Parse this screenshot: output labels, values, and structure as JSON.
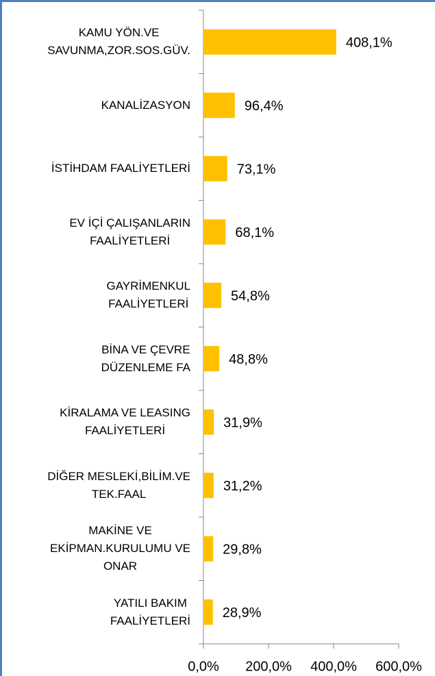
{
  "chart_data": {
    "type": "bar",
    "orientation": "horizontal",
    "categories": [
      "KAMU YÖN.VE\nSAVUNMA,ZOR.SOS.GÜV.",
      "KANALİZASYON",
      "İSTİHDAM FAALİYETLERİ",
      "EV İÇİ ÇALIŞANLARIN\nFAALİYETLERİ",
      "GAYRİMENKUL\nFAALİYETLERİ",
      "BİNA VE ÇEVRE\nDÜZENLEME FA",
      "KİRALAMA VE LEASING\nFAALİYETLERİ",
      "DİĞER MESLEKİ,BİLİM.VE\nTEK.FAAL",
      "MAKİNE VE\nEKİPMAN.KURULUMU VE\nONAR",
      "YATILI BAKIM\nFAALİYETLERİ"
    ],
    "values": [
      408.1,
      96.4,
      73.1,
      68.1,
      54.8,
      48.8,
      31.9,
      31.2,
      29.8,
      28.9
    ],
    "value_labels": [
      "408,1%",
      "96,4%",
      "73,1%",
      "68,1%",
      "54,8%",
      "48,8%",
      "31,9%",
      "31,2%",
      "29,8%",
      "28,9%"
    ],
    "color": "#ffc000",
    "xlim": [
      0,
      600
    ],
    "xticks": [
      {
        "value": 0,
        "label": "0,0%"
      },
      {
        "value": 200,
        "label": "200,0%"
      },
      {
        "value": 400,
        "label": "400,0%"
      },
      {
        "value": 600,
        "label": "600,0%"
      }
    ]
  }
}
